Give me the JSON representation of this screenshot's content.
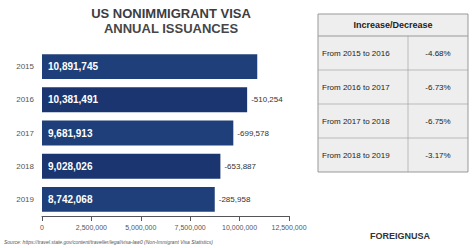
{
  "chart_data": {
    "type": "bar",
    "orientation": "horizontal",
    "title": "US NONIMMIGRANT VISA",
    "subtitle": "ANNUAL ISSUANCES",
    "categories": [
      "2015",
      "2016",
      "2017",
      "2018",
      "2019"
    ],
    "values": [
      10891745,
      10381491,
      9681913,
      9028026,
      8742068
    ],
    "value_labels": [
      "10,891,745",
      "10,381,491",
      "9,681,913",
      "9,028,026",
      "8,742,068"
    ],
    "data_labels": true,
    "colors": [
      "#1e3f7a",
      "#1a3570",
      "#1e3f7a",
      "#1a3570",
      "#1e3f7a"
    ],
    "xlim": [
      0,
      12500000
    ],
    "xticks": [
      0,
      {
        "value": 2500000,
        "label": "2,500,000"
      },
      {
        "value": 5000000,
        "label": "5,000,000"
      },
      {
        "value": 7500000,
        "label": "7,500,000"
      },
      {
        "value": 10000000,
        "label": "10,000,000"
      },
      {
        "value": 12500000,
        "label": "12,500,000"
      }
    ],
    "grid": false,
    "annotations": [
      {
        "category": "2016",
        "text": "-510,254"
      },
      {
        "category": "2017",
        "text": "-699,578"
      },
      {
        "category": "2018",
        "text": "-653,887"
      },
      {
        "category": "2019",
        "text": "-285,958"
      }
    ],
    "table": {
      "header": "Increase/Decrease",
      "rows": [
        [
          "From 2015 to 2016",
          "-4.68%"
        ],
        [
          "From 2016 to 2017",
          "-6.73%"
        ],
        [
          "From 2017 to 2018",
          "-6.75%"
        ],
        [
          "From 2018 to 2019",
          "-3.17%"
        ]
      ]
    },
    "source": "Source: https://travel.state.gov/content/traveller/legal/visa-law0 (Non-Immigrant Visa Statistics)",
    "logo": "FOREIGNUSA"
  }
}
